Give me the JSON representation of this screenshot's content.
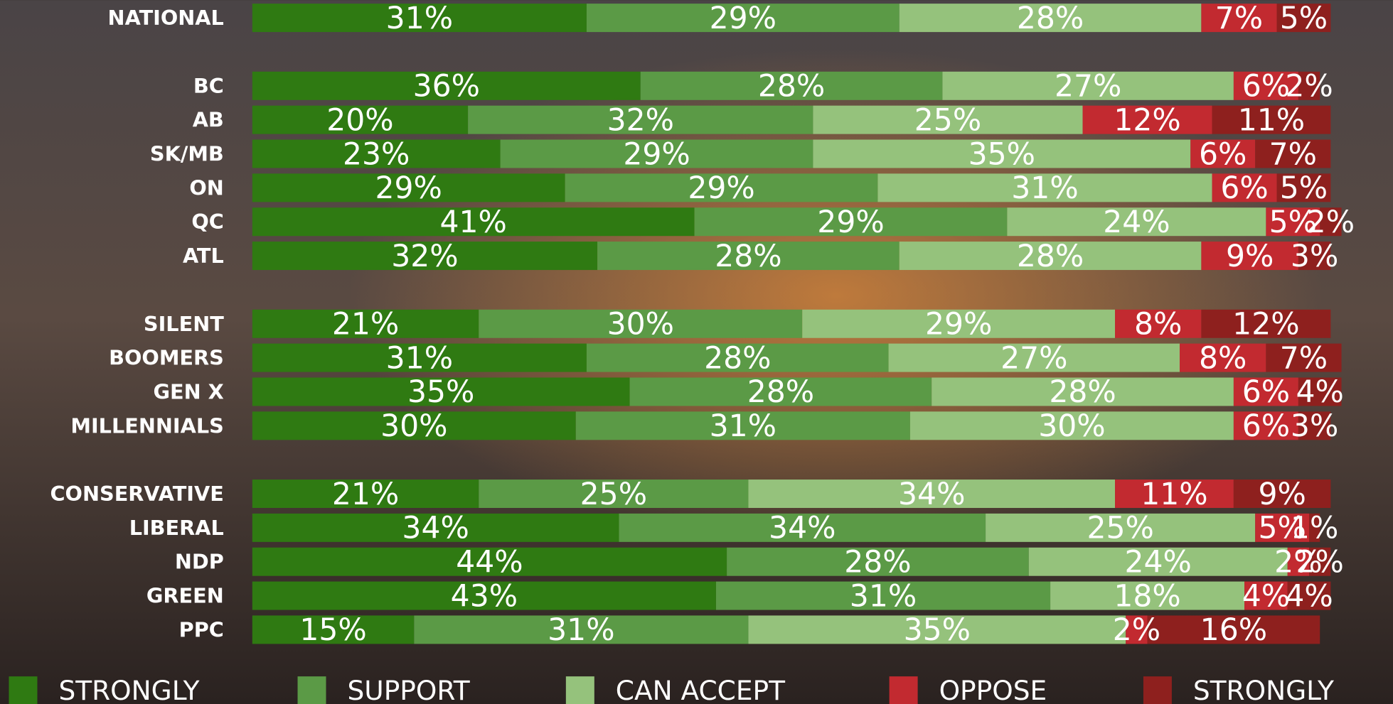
{
  "chart_data": {
    "type": "stacked-bar-horizontal",
    "categories": [
      "NATIONAL",
      null,
      "BC",
      "AB",
      "SK/MB",
      "ON",
      "QC",
      "ATL",
      null,
      "SILENT",
      "BOOMERS",
      "GEN X",
      "MILLENNIALS",
      null,
      "CONSERVATIVE",
      "LIBERAL",
      "NDP",
      "GREEN",
      "PPC"
    ],
    "series": [
      {
        "name": "STRONGLY",
        "color": "#2f7a12",
        "values": [
          31,
          null,
          36,
          20,
          23,
          29,
          41,
          32,
          null,
          21,
          31,
          35,
          30,
          null,
          21,
          34,
          44,
          43,
          15
        ],
        "value_labels": [
          "31%",
          null,
          "36%",
          "20%",
          "23%",
          "29%",
          "41%",
          "32%",
          null,
          "21%",
          "31%",
          "35%",
          "30%",
          null,
          "21%",
          "34%",
          "44%",
          "43%",
          "15%"
        ]
      },
      {
        "name": "SUPPORT",
        "color": "#5b9a46",
        "values": [
          29,
          null,
          28,
          32,
          29,
          29,
          29,
          28,
          null,
          30,
          28,
          28,
          31,
          null,
          25,
          34,
          28,
          31,
          31
        ],
        "value_labels": [
          "29%",
          null,
          "28%",
          "32%",
          "29%",
          "29%",
          "29%",
          "28%",
          null,
          "30%",
          "28%",
          "28%",
          "31%",
          null,
          "25%",
          "34%",
          "28%",
          "31%",
          "31%"
        ]
      },
      {
        "name": "CAN ACCEPT",
        "color": "#95c27c",
        "values": [
          28,
          null,
          27,
          25,
          35,
          31,
          24,
          28,
          null,
          29,
          27,
          28,
          30,
          null,
          34,
          25,
          24,
          18,
          35
        ],
        "value_labels": [
          "28%",
          null,
          "27%",
          "25%",
          "35%",
          "31%",
          "24%",
          "28%",
          null,
          "29%",
          "27%",
          "28%",
          "30%",
          null,
          "34%",
          "25%",
          "24%",
          "18%",
          "35%"
        ]
      },
      {
        "name": "OPPOSE",
        "color": "#c22a30",
        "values": [
          7,
          null,
          6,
          12,
          6,
          6,
          5,
          9,
          null,
          8,
          8,
          6,
          6,
          null,
          11,
          5,
          2,
          4,
          2
        ],
        "value_labels": [
          "7%",
          null,
          "6%",
          "12%",
          "6%",
          "6%",
          "5%",
          "9%",
          null,
          "8%",
          "8%",
          "6%",
          "6%",
          null,
          "11%",
          "5%",
          "2%",
          "4%",
          "2%"
        ]
      },
      {
        "name": "STRONGLY",
        "color": "#8e201e",
        "values": [
          5,
          null,
          2,
          11,
          7,
          5,
          2,
          3,
          null,
          12,
          7,
          4,
          3,
          null,
          9,
          1,
          2,
          4,
          16
        ],
        "value_labels": [
          "5%",
          null,
          "2%",
          "11%",
          "7%",
          "5%",
          "2%",
          "3%",
          null,
          "12%",
          "7%",
          "4%",
          "3%",
          null,
          "9%",
          "1%",
          "2%",
          "4%",
          "16%"
        ]
      }
    ]
  }
}
